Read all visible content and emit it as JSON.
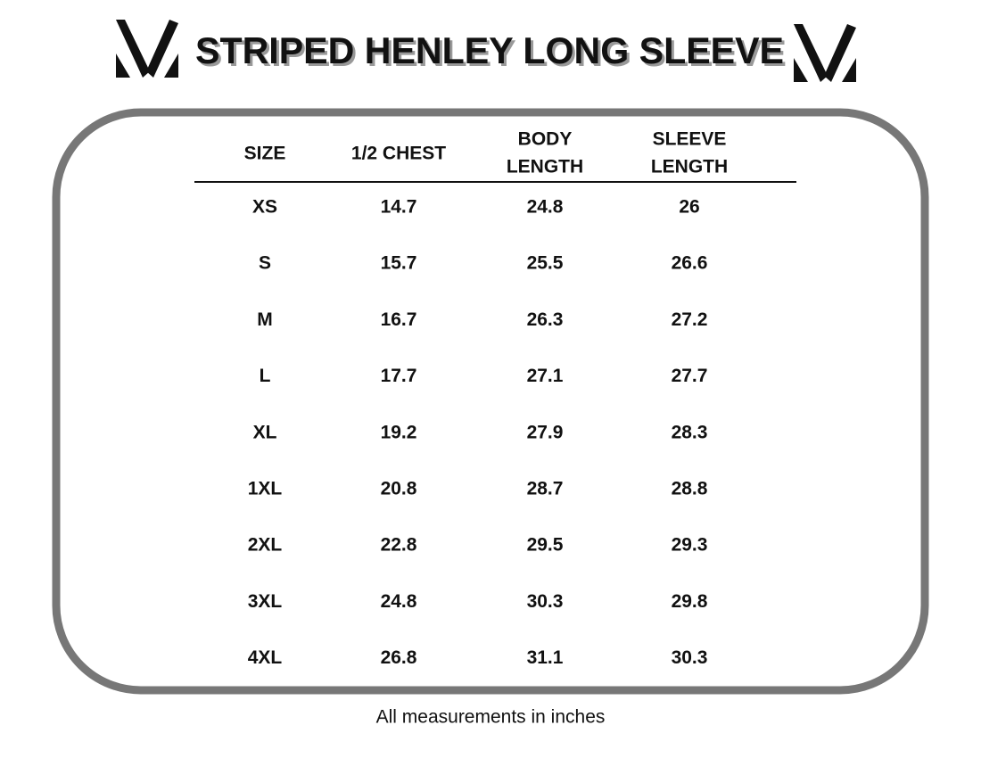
{
  "header": {
    "title": "STRIPED HENLEY LONG SLEEVE"
  },
  "table": {
    "columns": [
      [
        "SIZE"
      ],
      [
        "1/2 CHEST"
      ],
      [
        "BODY",
        "LENGTH"
      ],
      [
        "SLEEVE",
        "LENGTH"
      ]
    ],
    "rows": [
      [
        "XS",
        14.7,
        24.8,
        26
      ],
      [
        "S",
        15.7,
        25.5,
        26.6
      ],
      [
        "M",
        16.7,
        26.3,
        27.2
      ],
      [
        "L",
        17.7,
        27.1,
        27.7
      ],
      [
        "XL",
        19.2,
        27.9,
        28.3
      ],
      [
        "1XL",
        20.8,
        28.7,
        28.8
      ],
      [
        "2XL",
        22.8,
        29.5,
        29.3
      ],
      [
        "3XL",
        24.8,
        30.3,
        29.8
      ],
      [
        "4XL",
        26.8,
        31.1,
        30.3
      ]
    ]
  },
  "footer": {
    "note": "All measurements in inches"
  }
}
